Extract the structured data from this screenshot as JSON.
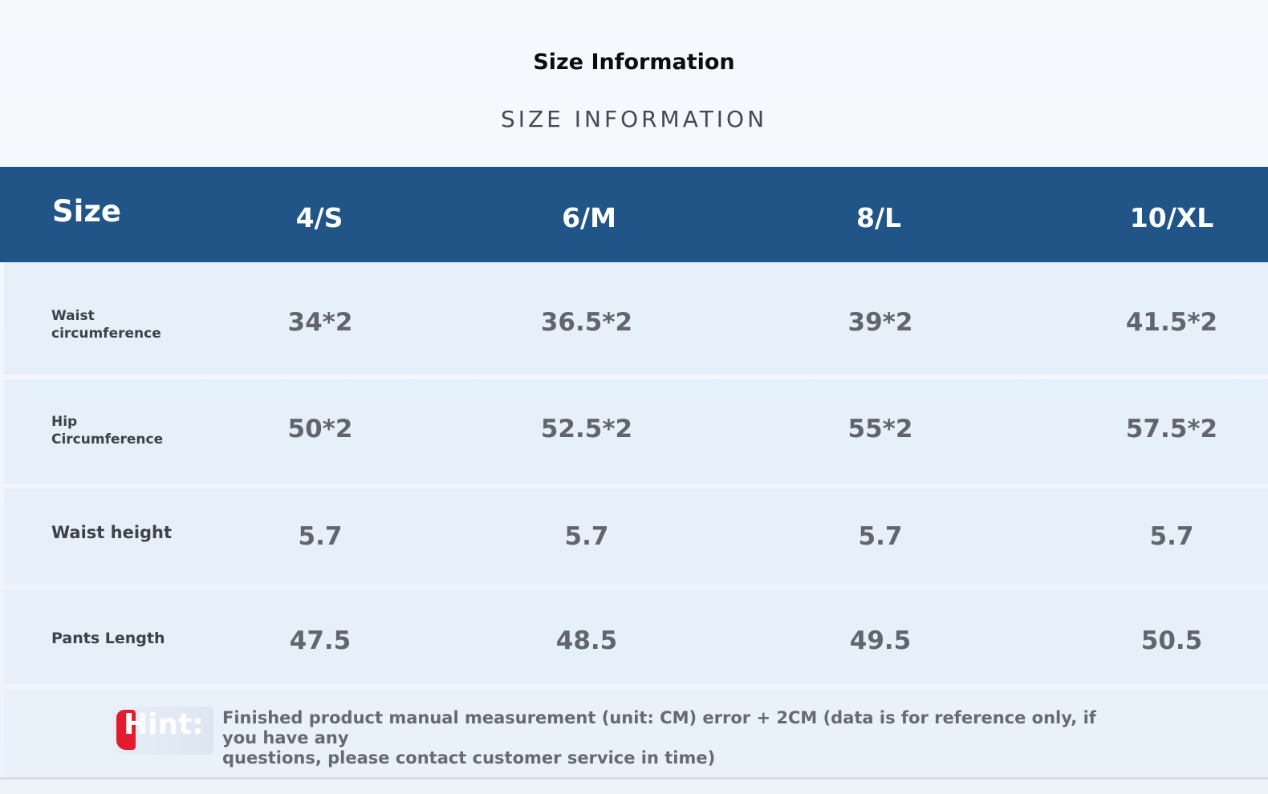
{
  "title": "Size Information",
  "subtitle": "SIZE INFORMATION",
  "table": {
    "header_label": "Size",
    "columns": [
      "4/S",
      "6/M",
      "8/L",
      "10/XL"
    ],
    "rows": [
      {
        "label_line1": "Waist",
        "label_line2": "circumference",
        "values": [
          "34*2",
          "36.5*2",
          "39*2",
          "41.5*2"
        ]
      },
      {
        "label_line1": "Hip",
        "label_line2": "Circumference",
        "values": [
          "50*2",
          "52.5*2",
          "55*2",
          "57.5*2"
        ]
      },
      {
        "label_line1": "Waist height",
        "label_line2": "",
        "values": [
          "5.7",
          "5.7",
          "5.7",
          "5.7"
        ]
      },
      {
        "label_line1": "Pants Length",
        "label_line2": "",
        "values": [
          "47.5",
          "48.5",
          "49.5",
          "50.5"
        ]
      }
    ]
  },
  "hint": {
    "label": "Hint:",
    "text_line1": "Finished product manual measurement (unit: CM) error + 2CM (data is for reference only, if you have any",
    "text_line2": "questions, please contact customer service in time)"
  },
  "colors": {
    "header_bg": "#215587",
    "row_bg": "#e6f0fa",
    "hint_accent": "#e21b2d"
  }
}
